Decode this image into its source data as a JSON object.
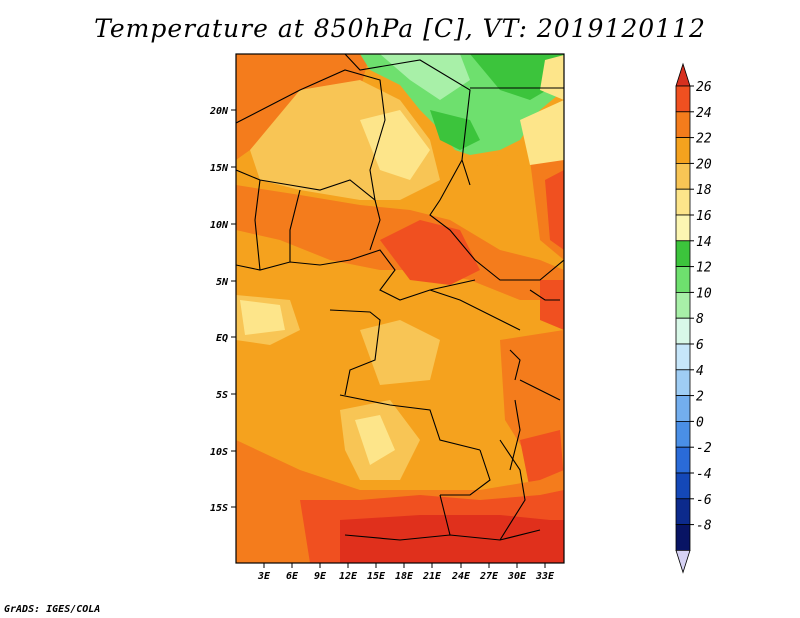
{
  "title": "Temperature at 850hPa [C], VT: 2019120112",
  "credit": "GrADS: IGES/COLA",
  "lat_labels": [
    "20N",
    "15N",
    "10N",
    "5N",
    "EQ",
    "5S",
    "10S",
    "15S"
  ],
  "lon_labels": [
    "3E",
    "6E",
    "9E",
    "12E",
    "15E",
    "18E",
    "21E",
    "24E",
    "27E",
    "30E",
    "33E"
  ],
  "colorbar": {
    "labels": [
      "26",
      "24",
      "22",
      "20",
      "18",
      "16",
      "14",
      "12",
      "10",
      "8",
      "6",
      "4",
      "2",
      "0",
      "-2",
      "-4",
      "-6",
      "-8"
    ],
    "colors_top_to_bottom": [
      "#d7301f",
      "#f05020",
      "#f47c1c",
      "#f5a21e",
      "#f8c555",
      "#fde58a",
      "#fcf6b2",
      "#3cc43c",
      "#6ee06e",
      "#a8f0a8",
      "#d8f8e8",
      "#c6e6fa",
      "#9fcdf4",
      "#73aeee",
      "#4a8fe6",
      "#2a6bd8",
      "#1448b8",
      "#0c2a8c",
      "#081464",
      "#d6d2f4"
    ]
  }
}
